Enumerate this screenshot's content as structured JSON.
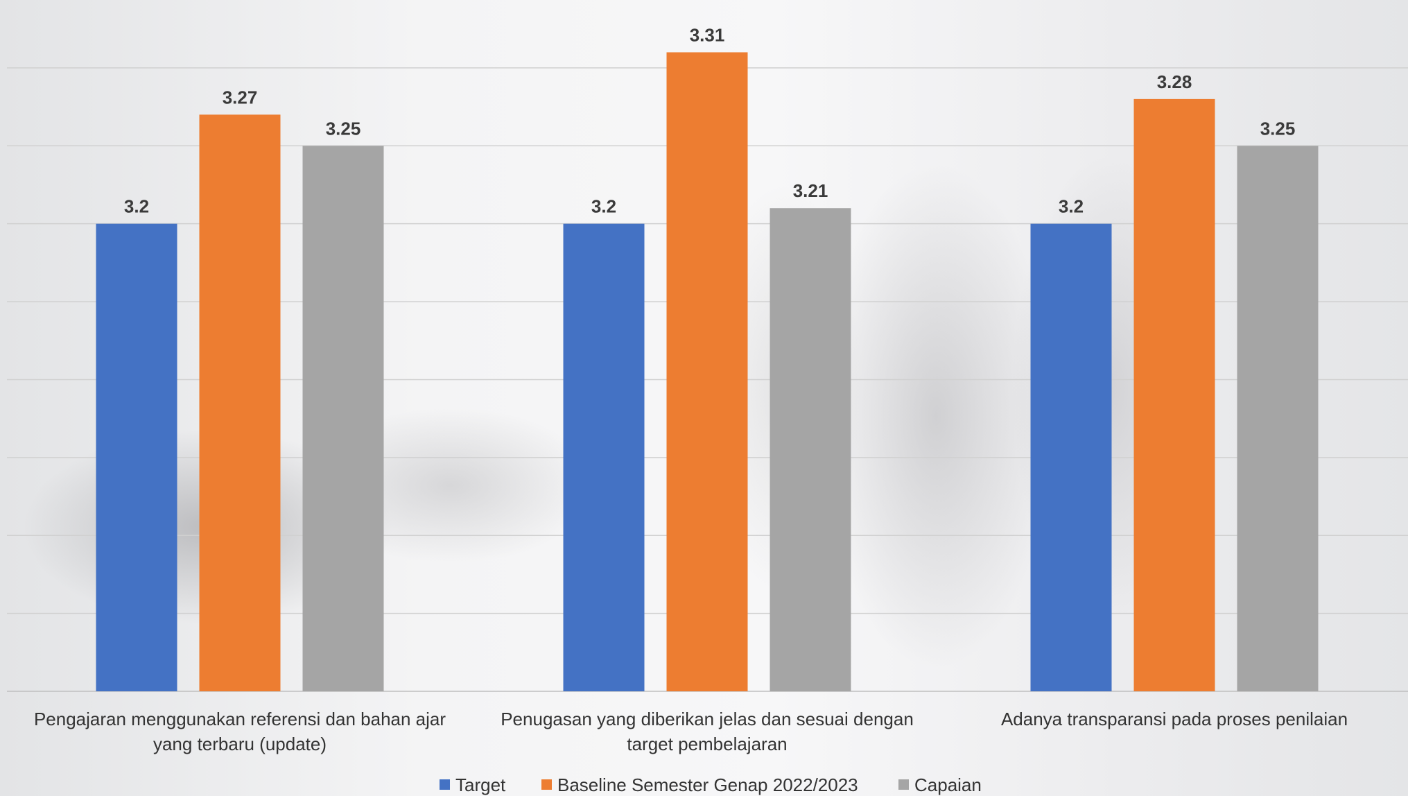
{
  "chart_data": {
    "type": "bar",
    "categories": [
      [
        "Pengajaran menggunakan referensi dan bahan ajar",
        "yang terbaru (update)"
      ],
      [
        "Penugasan yang diberikan jelas dan sesuai dengan",
        "target pembelajaran"
      ],
      [
        "Adanya transparansi pada proses penilaian"
      ]
    ],
    "series": [
      {
        "name": "Target",
        "color": "#4472C4",
        "values": [
          3.2,
          3.2,
          3.2
        ],
        "labels": [
          "3.2",
          "3.2",
          "3.2"
        ]
      },
      {
        "name": "Baseline Semester Genap 2022/2023",
        "color": "#ED7D31",
        "values": [
          3.27,
          3.31,
          3.28
        ],
        "labels": [
          "3.27",
          "3.31",
          "3.28"
        ]
      },
      {
        "name": "Capaian",
        "color": "#A5A5A5",
        "values": [
          3.25,
          3.21,
          3.25
        ],
        "labels": [
          "3.25",
          "3.21",
          "3.25"
        ]
      }
    ],
    "ylim": [
      2.9,
      3.34
    ],
    "grid": true,
    "legend_position": "bottom"
  }
}
